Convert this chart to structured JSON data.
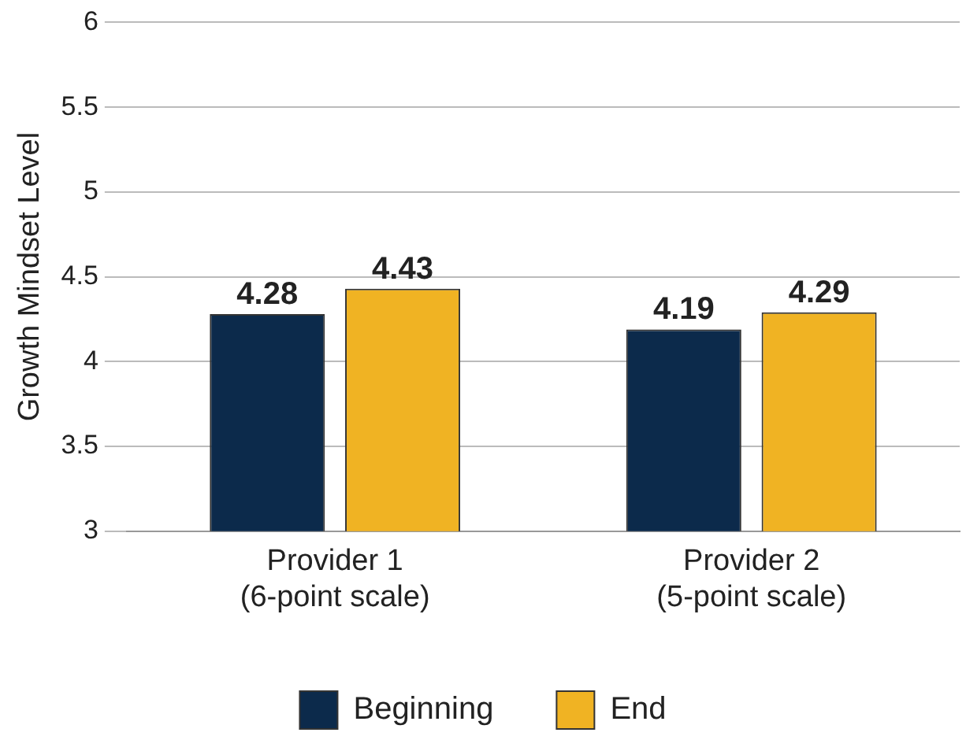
{
  "chart_data": {
    "type": "bar",
    "ylabel": "Growth Mindset Level",
    "categories": [
      "Provider 1\n(6-point scale)",
      "Provider 2\n(5-point scale)"
    ],
    "series": [
      {
        "name": "Beginning",
        "color": "#0c2a4b",
        "values": [
          4.28,
          4.19
        ]
      },
      {
        "name": "End",
        "color": "#f0b323",
        "values": [
          4.43,
          4.29
        ]
      }
    ],
    "ylim": [
      3,
      6
    ],
    "yticks": [
      3,
      3.5,
      4,
      4.5,
      5,
      5.5,
      6
    ],
    "grid": "y",
    "legend": "bottom",
    "data_labels": true
  }
}
